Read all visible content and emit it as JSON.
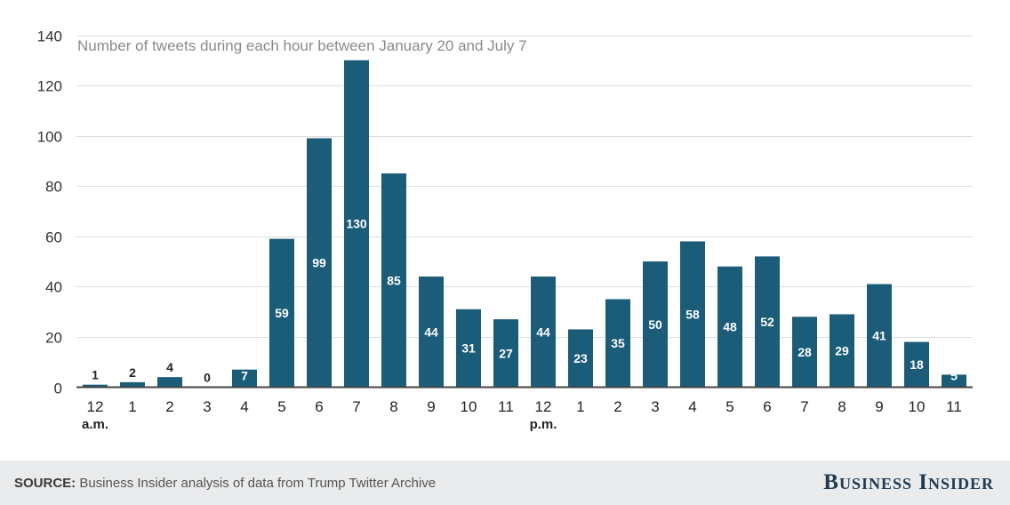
{
  "chart_data": {
    "type": "bar",
    "title": "Number of tweets during each hour between January 20 and July 7",
    "categories": [
      "12",
      "1",
      "2",
      "3",
      "4",
      "5",
      "6",
      "7",
      "8",
      "9",
      "10",
      "11",
      "12",
      "1",
      "2",
      "3",
      "4",
      "5",
      "6",
      "7",
      "8",
      "9",
      "10",
      "11"
    ],
    "category_sublabels": {
      "0": "a.m.",
      "12": "p.m."
    },
    "values": [
      1,
      2,
      4,
      0,
      7,
      59,
      99,
      130,
      85,
      44,
      31,
      27,
      44,
      23,
      35,
      50,
      58,
      48,
      52,
      28,
      29,
      41,
      18,
      5
    ],
    "y_ticks": [
      0,
      20,
      40,
      60,
      80,
      100,
      120,
      140
    ],
    "ylim": [
      0,
      140
    ],
    "grid": true,
    "bar_color": "#1b5c78"
  },
  "footer": {
    "source_label": "SOURCE:",
    "source_text": " Business Insider analysis of data from Trump Twitter Archive",
    "brand": "Business Insider"
  }
}
